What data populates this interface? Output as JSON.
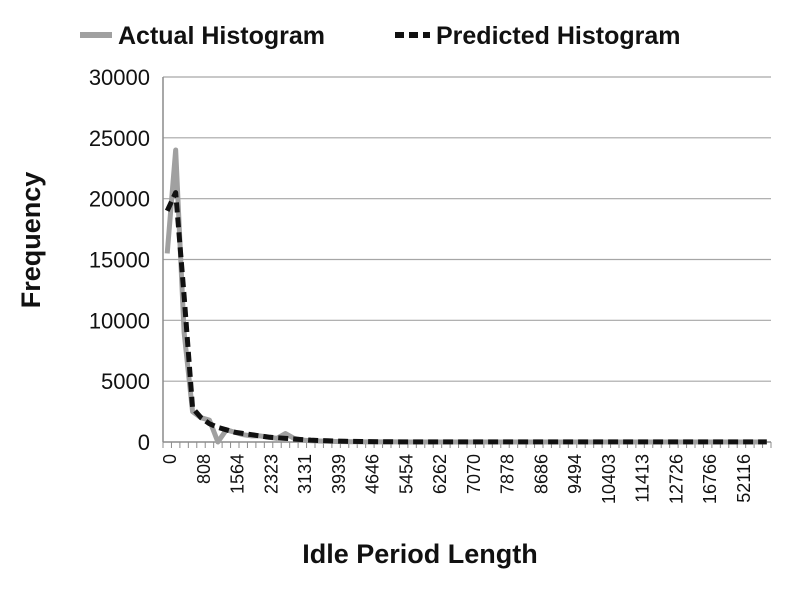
{
  "chart_data": {
    "type": "line",
    "xlabel": "Idle Period Length",
    "ylabel": "Frequency",
    "ylim": [
      0,
      30000
    ],
    "yticks": [
      "0",
      "5000",
      "10000",
      "15000",
      "20000",
      "25000",
      "30000"
    ],
    "x_tick_labels": [
      "0",
      "808",
      "1564",
      "2323",
      "3131",
      "3939",
      "4646",
      "5454",
      "6262",
      "7070",
      "7878",
      "8686",
      "9494",
      "10403",
      "11413",
      "12726",
      "16766",
      "52116"
    ],
    "grid": true,
    "legend_position": "top",
    "series": [
      {
        "name": "Actual Histogram",
        "color": "#a0a0a0",
        "style": "solid",
        "values": [
          15500,
          24000,
          9000,
          2500,
          2000,
          1800,
          0,
          1000,
          800,
          600,
          500,
          500,
          400,
          300,
          700,
          300,
          150,
          100,
          80,
          60,
          40,
          30,
          20,
          15,
          10,
          10,
          10,
          10,
          5,
          5,
          5,
          5,
          5,
          5,
          5,
          5,
          5,
          5,
          5,
          5,
          5,
          5,
          5,
          5,
          5,
          5,
          5,
          5,
          5,
          5,
          5,
          5,
          5,
          5,
          5,
          5,
          5,
          5,
          5,
          5,
          5,
          5,
          5,
          5,
          5,
          5,
          5,
          5,
          5,
          5,
          5,
          5
        ]
      },
      {
        "name": "Predicted Histogram",
        "color": "#111111",
        "style": "dashed",
        "values": [
          19000,
          20500,
          12000,
          2800,
          2000,
          1500,
          1200,
          1000,
          800,
          700,
          600,
          500,
          400,
          350,
          300,
          250,
          200,
          150,
          120,
          100,
          80,
          60,
          50,
          40,
          30,
          25,
          20,
          15,
          10,
          10,
          10,
          10,
          10,
          10,
          10,
          10,
          10,
          10,
          10,
          10,
          10,
          10,
          10,
          10,
          10,
          10,
          10,
          10,
          10,
          10,
          10,
          10,
          10,
          10,
          10,
          10,
          10,
          10,
          10,
          10,
          10,
          10,
          10,
          10,
          10,
          10,
          10,
          10,
          10,
          10,
          10,
          10
        ]
      }
    ]
  }
}
